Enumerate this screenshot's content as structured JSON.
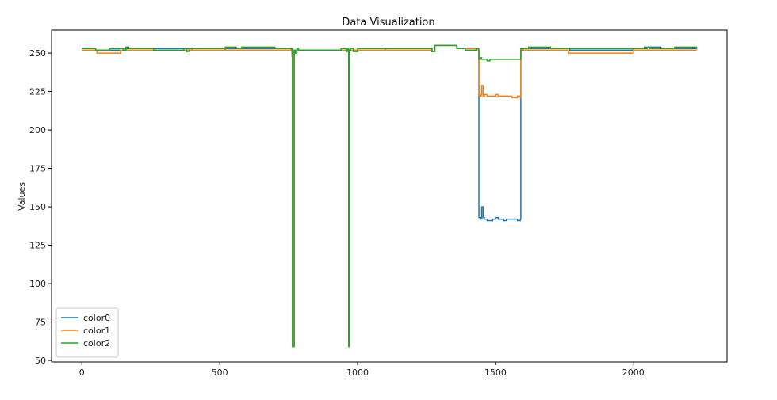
{
  "chart_data": {
    "type": "line",
    "title": "Data Visualization",
    "xlabel": "",
    "ylabel": "Values",
    "xlim": [
      -110,
      2340
    ],
    "ylim": [
      49,
      265
    ],
    "xticks": [
      0,
      500,
      1000,
      1500,
      2000
    ],
    "yticks": [
      50,
      75,
      100,
      125,
      150,
      175,
      200,
      225,
      250
    ],
    "grid": false,
    "legend_position": "lower-left",
    "series": [
      {
        "name": "color0",
        "color": "#1f77b4",
        "x": [
          0,
          140,
          150,
          400,
          520,
          760,
          762,
          764,
          770,
          780,
          965,
          968,
          970,
          980,
          1100,
          1270,
          1280,
          1350,
          1360,
          1380,
          1438,
          1440,
          1448,
          1450,
          1455,
          1460,
          1470,
          1490,
          1500,
          1510,
          1520,
          1530,
          1540,
          1560,
          1580,
          1590,
          1592,
          1600,
          1700,
          1760,
          1770,
          2000,
          2050,
          2100,
          2230
        ],
        "values": [
          252,
          252,
          253,
          252,
          253,
          252,
          249,
          60,
          252,
          252,
          252,
          60,
          252,
          252,
          253,
          251,
          255,
          255,
          253,
          253,
          253,
          143,
          142,
          150,
          143,
          142,
          141,
          142,
          143,
          142,
          142,
          141,
          142,
          142,
          141,
          142,
          252,
          253,
          253,
          253,
          252,
          253,
          254,
          253,
          254
        ]
      },
      {
        "name": "color1",
        "color": "#ff7f0e",
        "x": [
          0,
          50,
          55,
          140,
          150,
          400,
          520,
          760,
          762,
          764,
          770,
          780,
          965,
          968,
          970,
          980,
          1100,
          1270,
          1280,
          1350,
          1360,
          1380,
          1438,
          1440,
          1448,
          1450,
          1455,
          1460,
          1470,
          1490,
          1500,
          1510,
          1520,
          1540,
          1560,
          1580,
          1590,
          1592,
          1600,
          1760,
          1765,
          2000,
          2230
        ],
        "values": [
          252,
          252,
          250,
          252,
          252,
          252,
          252,
          252,
          248,
          59,
          252,
          252,
          252,
          59,
          252,
          252,
          252,
          251,
          255,
          255,
          253,
          253,
          253,
          222,
          223,
          229,
          222,
          223,
          222,
          222,
          223,
          222,
          222,
          222,
          221,
          222,
          221,
          252,
          252,
          252,
          250,
          252,
          252
        ]
      },
      {
        "name": "color2",
        "color": "#2ca02c",
        "x": [
          0,
          40,
          50,
          100,
          150,
          160,
          170,
          250,
          260,
          370,
          380,
          390,
          500,
          520,
          560,
          580,
          700,
          760,
          762,
          764,
          770,
          775,
          780,
          785,
          900,
          940,
          960,
          965,
          968,
          970,
          975,
          985,
          1000,
          1100,
          1200,
          1260,
          1270,
          1280,
          1350,
          1360,
          1380,
          1390,
          1430,
          1438,
          1440,
          1445,
          1450,
          1460,
          1470,
          1480,
          1500,
          1520,
          1540,
          1560,
          1580,
          1590,
          1592,
          1600,
          1620,
          1650,
          1700,
          1760,
          1800,
          2000,
          2040,
          2060,
          2100,
          2150,
          2230
        ],
        "values": [
          253,
          253,
          252,
          253,
          252,
          254,
          253,
          253,
          252,
          253,
          251,
          253,
          253,
          254,
          253,
          254,
          253,
          253,
          250,
          59,
          252,
          250,
          253,
          252,
          252,
          253,
          251,
          253,
          59,
          252,
          253,
          251,
          253,
          253,
          253,
          253,
          251,
          255,
          255,
          253,
          253,
          252,
          253,
          252,
          246,
          247,
          246,
          246,
          245,
          246,
          246,
          246,
          246,
          246,
          246,
          246,
          253,
          253,
          254,
          254,
          253,
          253,
          253,
          253,
          254,
          253,
          253,
          254,
          254
        ]
      }
    ]
  }
}
